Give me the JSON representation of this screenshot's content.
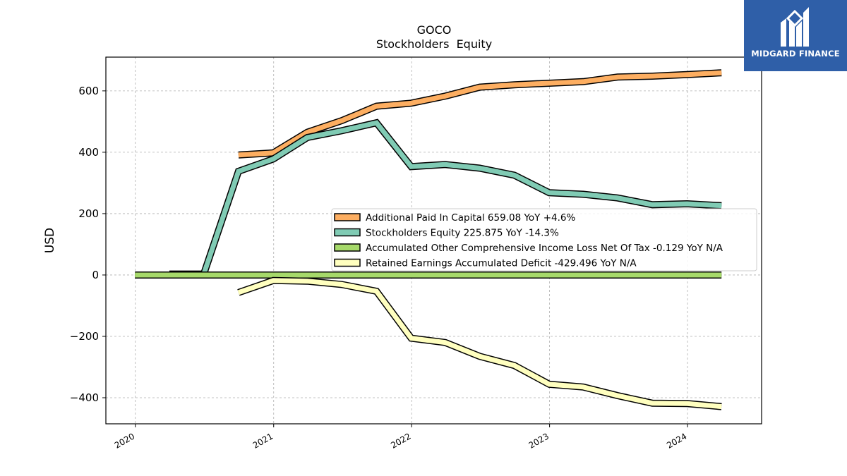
{
  "chart_data": {
    "type": "line",
    "title": "GOCO",
    "subtitle": "Stockholders  Equity",
    "xlabel": "",
    "ylabel": "USD",
    "xlim": [
      "2019-10-15",
      "2024-07-15"
    ],
    "ylim": [
      -485,
      710
    ],
    "x_ticks": [
      "2020",
      "2021",
      "2022",
      "2023",
      "2024"
    ],
    "y_ticks": [
      -400,
      -200,
      0,
      200,
      400,
      600
    ],
    "grid": true,
    "legend_position": "center-right",
    "series": [
      {
        "name": "Additional Paid In Capital  659.08 YoY +4.6%",
        "color": "#fdae61",
        "x": [
          "2020-09-30",
          "2020-12-31",
          "2021-03-31",
          "2021-06-30",
          "2021-09-30",
          "2021-12-31",
          "2022-03-31",
          "2022-06-30",
          "2022-09-30",
          "2022-12-31",
          "2023-03-31",
          "2023-06-30",
          "2023-09-30",
          "2023-12-31",
          "2024-03-31"
        ],
        "values": [
          391,
          398,
          465,
          503,
          550,
          560,
          583,
          612,
          620,
          625,
          630,
          645,
          648,
          653,
          659
        ]
      },
      {
        "name": "Stockholders Equity  225.875 YoY -14.3%",
        "color": "#80cbb4",
        "x": [
          "2020-03-31",
          "2020-06-30",
          "2020-09-30",
          "2020-12-31",
          "2021-03-31",
          "2021-06-30",
          "2021-09-30",
          "2021-12-31",
          "2022-03-31",
          "2022-06-30",
          "2022-09-30",
          "2022-12-31",
          "2023-03-31",
          "2023-06-30",
          "2023-09-30",
          "2023-12-31",
          "2024-03-31"
        ],
        "values": [
          3,
          3,
          338,
          378,
          448,
          470,
          496,
          353,
          360,
          348,
          325,
          268,
          263,
          251,
          229,
          232,
          226
        ]
      },
      {
        "name": "Accumulated Other Comprehensive Income Loss Net Of Tax  -0.129 YoY N/A",
        "color": "#a6d96a",
        "x": [
          "2019-12-31",
          "2020-03-31",
          "2020-06-30",
          "2020-09-30",
          "2020-12-31",
          "2021-03-31",
          "2021-06-30",
          "2021-09-30",
          "2021-12-31",
          "2022-03-31",
          "2022-06-30",
          "2022-09-30",
          "2022-12-31",
          "2023-03-31",
          "2023-06-30",
          "2023-09-30",
          "2023-12-31",
          "2024-03-31"
        ],
        "values": [
          0,
          0,
          0,
          0,
          0,
          0,
          0,
          0,
          0,
          0,
          0,
          0,
          0,
          0,
          0,
          0,
          0,
          -0.129
        ]
      },
      {
        "name": "Retained Earnings Accumulated Deficit  -429.496 YoY N/A",
        "color": "#ffffbf",
        "x": [
          "2020-09-30",
          "2020-12-31",
          "2021-03-31",
          "2021-06-30",
          "2021-09-30",
          "2021-12-31",
          "2022-03-31",
          "2022-06-30",
          "2022-09-30",
          "2022-12-31",
          "2023-03-31",
          "2023-06-30",
          "2023-09-30",
          "2023-12-31",
          "2024-03-31"
        ],
        "values": [
          -57,
          -18,
          -20,
          -31,
          -53,
          -206,
          -220,
          -265,
          -295,
          -356,
          -365,
          -393,
          -418,
          -419,
          -429
        ]
      }
    ]
  },
  "logo": {
    "text": "MIDGARD FINANCE"
  }
}
